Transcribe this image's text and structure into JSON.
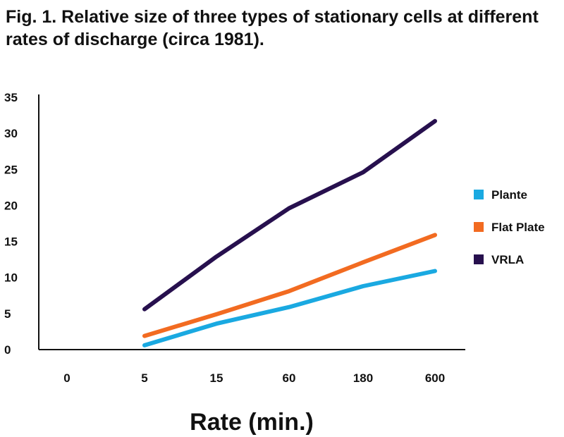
{
  "chart_data": {
    "type": "line",
    "title": "Fig. 1. Relative size of three types of stationary cells at different rates of discharge (circa 1981).",
    "xlabel": "Rate (min.)",
    "ylabel": "",
    "categories": [
      "0",
      "5",
      "15",
      "60",
      "180",
      "600"
    ],
    "yticks": [
      "0",
      "5",
      "10",
      "15",
      "20",
      "25",
      "30",
      "35"
    ],
    "ylim": [
      0,
      35
    ],
    "grid": false,
    "legend_position": "right",
    "series": [
      {
        "name": "Plante",
        "color": "#1aa9e1",
        "values": [
          null,
          0.6,
          3.6,
          5.9,
          8.8,
          10.9
        ]
      },
      {
        "name": "Flat Plate",
        "color": "#f26b21",
        "values": [
          null,
          1.9,
          4.9,
          8.1,
          12.1,
          15.9
        ]
      },
      {
        "name": "VRLA",
        "color": "#27104e",
        "values": [
          null,
          5.6,
          12.9,
          19.6,
          24.6,
          31.7
        ]
      }
    ]
  }
}
